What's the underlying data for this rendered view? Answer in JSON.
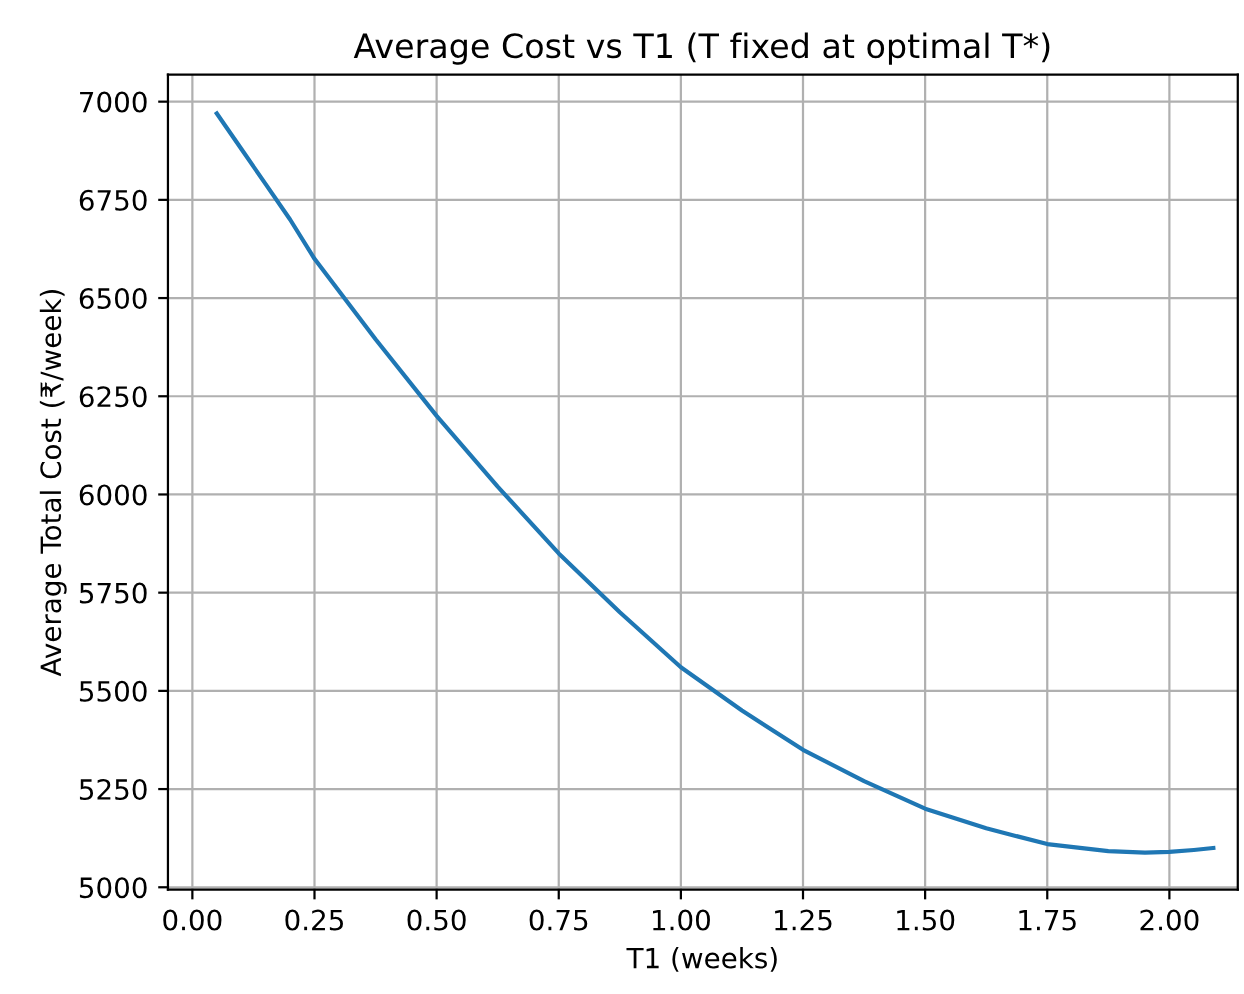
{
  "chart_data": {
    "type": "line",
    "title": "Average Cost vs T1 (T fixed at optimal T*)",
    "xlabel": "T1 (weeks)",
    "ylabel": "Average Total Cost (₹/week)",
    "series": [
      {
        "color": "#1f77b4",
        "x": [
          0.05,
          0.1,
          0.15,
          0.2,
          0.25,
          0.375,
          0.5,
          0.625,
          0.75,
          0.875,
          1.0,
          1.125,
          1.25,
          1.375,
          1.5,
          1.625,
          1.75,
          1.875,
          1.95,
          2.0,
          2.05,
          2.09
        ],
        "values": [
          6970,
          6880,
          6790,
          6700,
          6600,
          6395,
          6200,
          6020,
          5850,
          5700,
          5560,
          5450,
          5350,
          5270,
          5200,
          5150,
          5110,
          5092,
          5088,
          5090,
          5095,
          5100
        ]
      }
    ],
    "xlim": [
      -0.05,
      2.14
    ],
    "xticks": [
      {
        "value": 0,
        "label": "0.00"
      },
      {
        "value": 0.25,
        "label": "0.25"
      },
      {
        "value": 0.5,
        "label": "0.50"
      },
      {
        "value": 0.75,
        "label": "0.75"
      },
      {
        "value": 1,
        "label": "1.00"
      },
      {
        "value": 1.25,
        "label": "1.25"
      },
      {
        "value": 1.5,
        "label": "1.50"
      },
      {
        "value": 1.75,
        "label": "1.75"
      },
      {
        "value": 2,
        "label": "2.00"
      }
    ],
    "ylim": [
      4994,
      7069
    ],
    "yticks": [
      5000,
      5250,
      5500,
      5750,
      6000,
      6250,
      6500,
      6750,
      7000
    ],
    "grid": true,
    "marker": "none",
    "line_style": "solid"
  }
}
